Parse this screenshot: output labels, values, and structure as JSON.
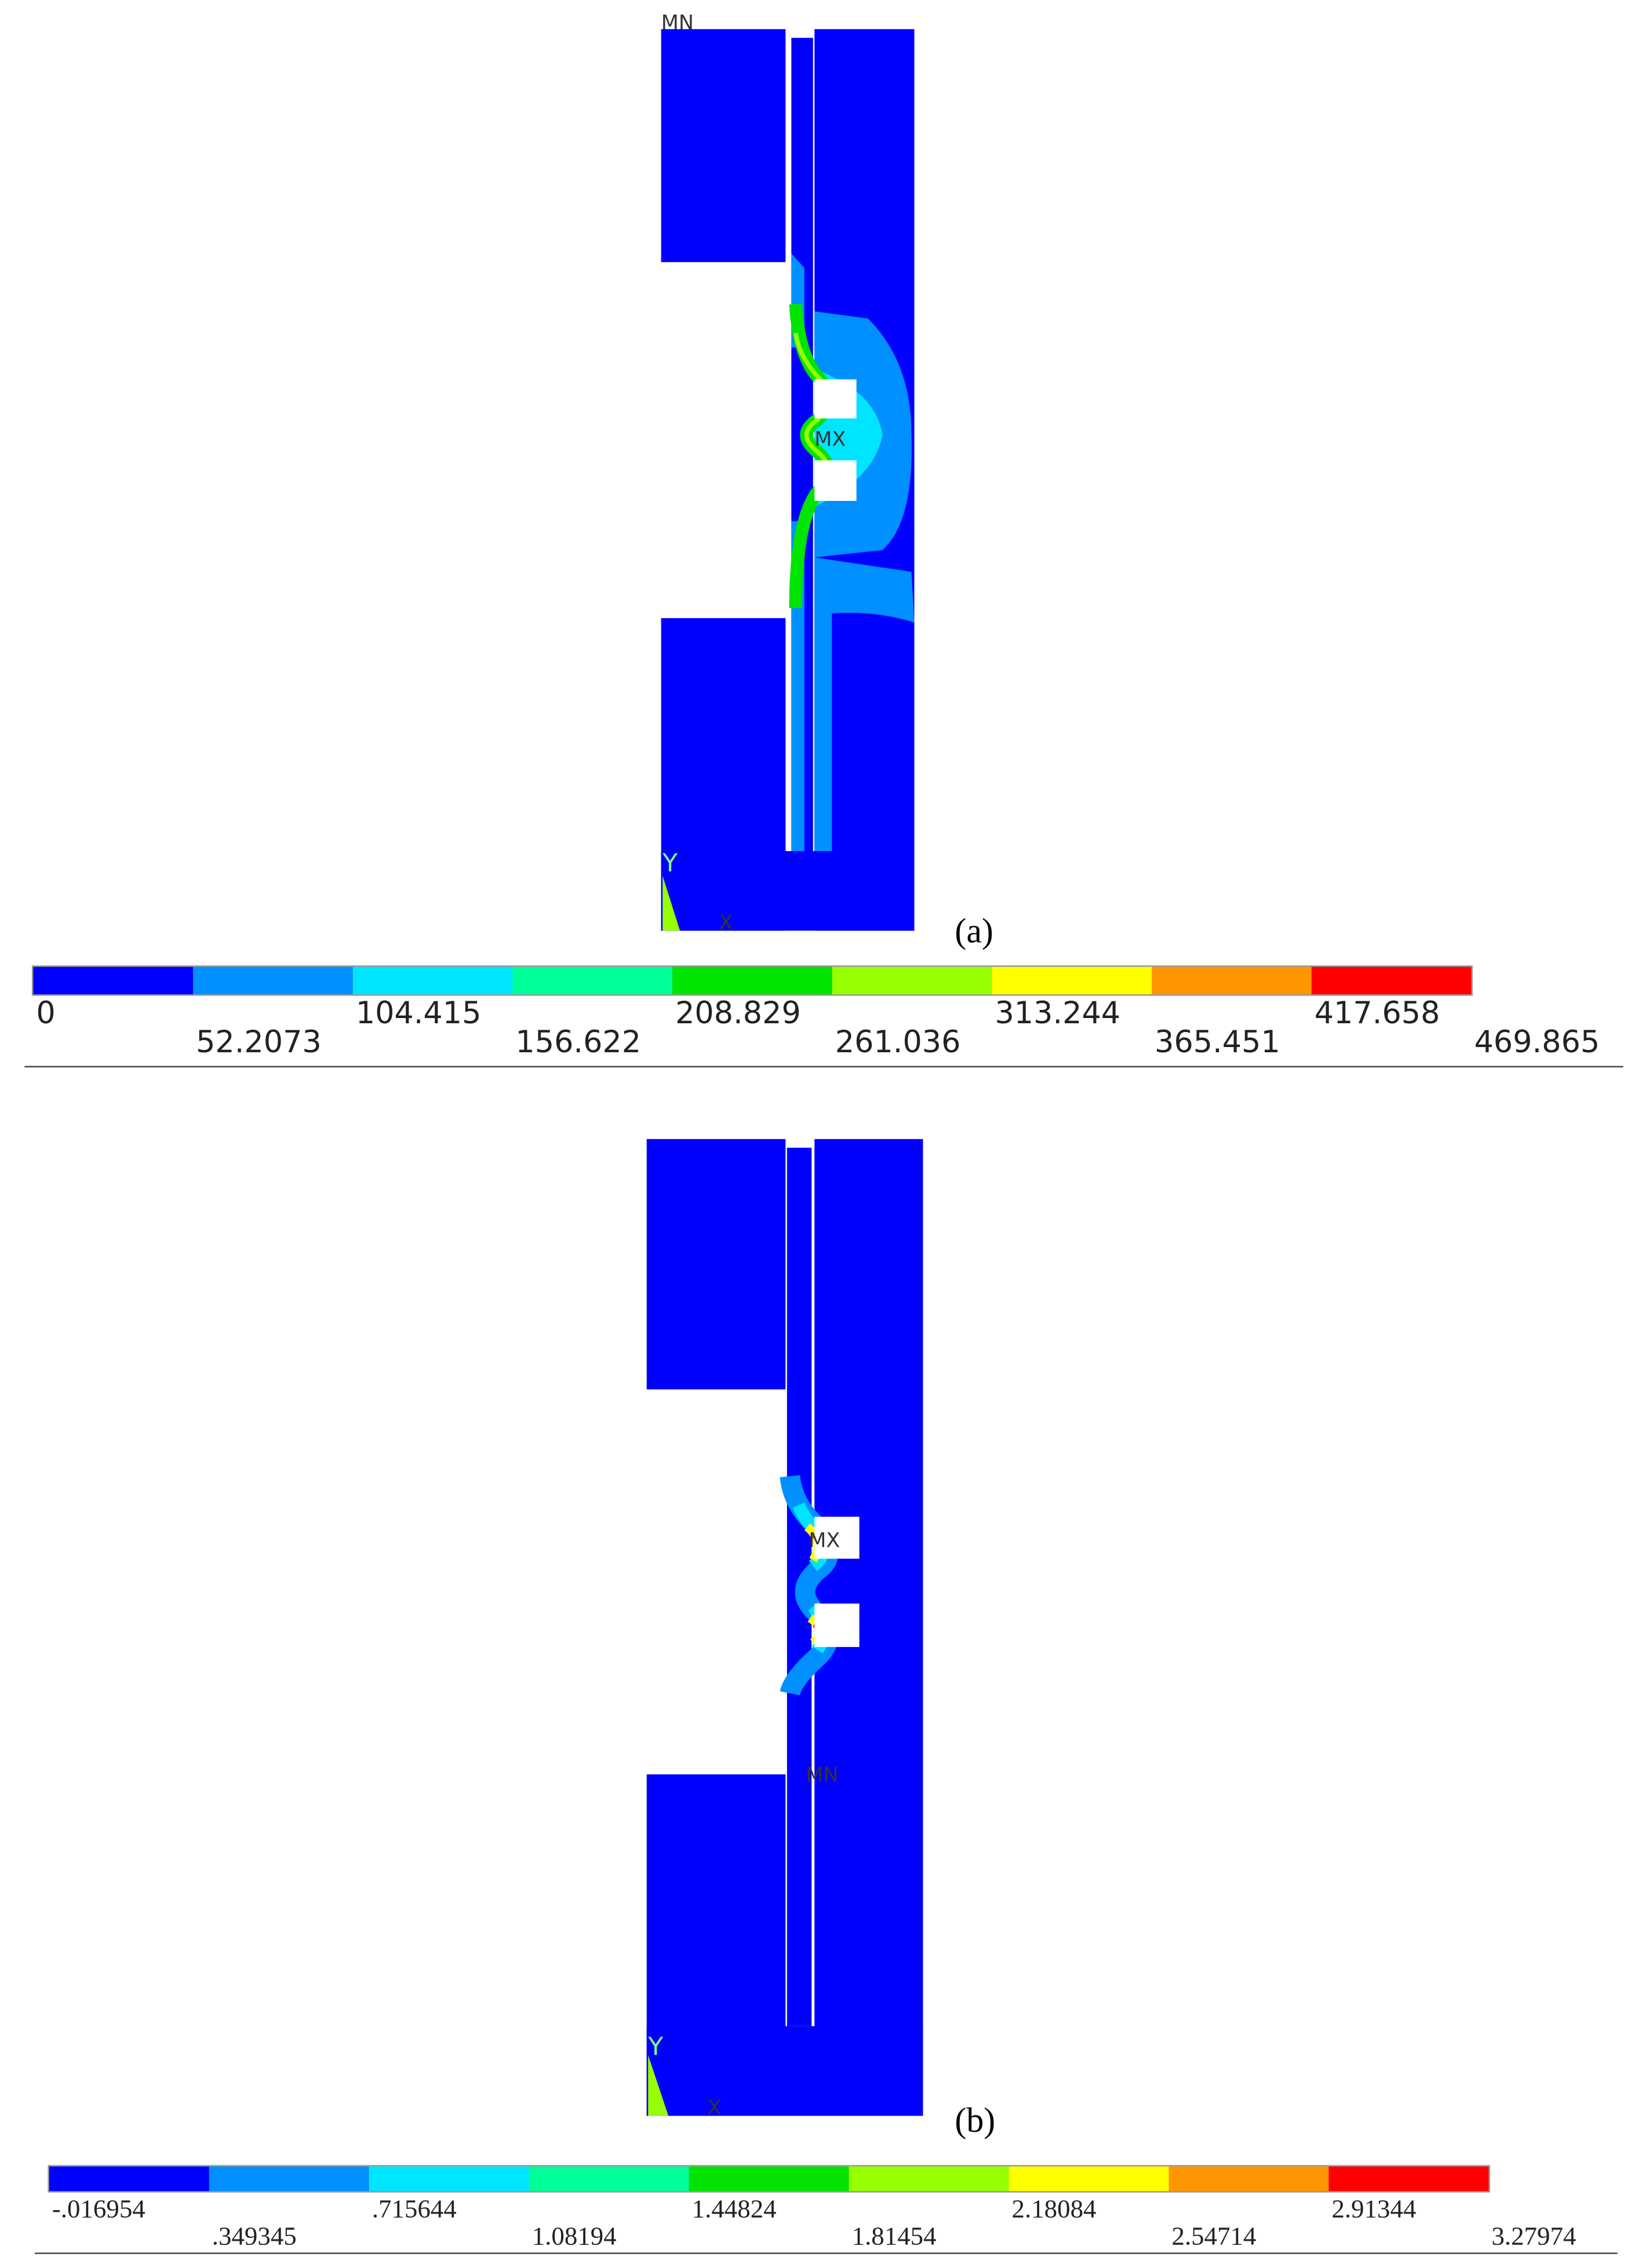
{
  "panels": [
    {
      "label": "(a)",
      "min_marker": "MN",
      "max_marker": "MX",
      "axis_y": "Y",
      "axis_x": "X",
      "legend": {
        "colors": [
          "#0000ff",
          "#0090ff",
          "#00e5ff",
          "#00ff98",
          "#00e400",
          "#96ff00",
          "#ffff00",
          "#ff9600",
          "#ff0000"
        ],
        "ticks": [
          "0",
          "52.2073",
          "104.415",
          "156.622",
          "208.829",
          "261.036",
          "313.244",
          "365.451",
          "417.658",
          "469.865"
        ]
      }
    },
    {
      "label": "(b)",
      "min_marker": "MN",
      "max_marker": "MX",
      "axis_y": "Y",
      "axis_x": "X",
      "legend": {
        "colors": [
          "#0000ff",
          "#0090ff",
          "#00e5ff",
          "#00ff98",
          "#00e400",
          "#96ff00",
          "#ffff00",
          "#ff9600",
          "#ff0000"
        ],
        "ticks": [
          "-.016954",
          ".349345",
          ".715644",
          "1.08194",
          "1.44824",
          "1.81454",
          "2.18084",
          "2.54714",
          "2.91344",
          "3.27974"
        ]
      }
    }
  ]
}
